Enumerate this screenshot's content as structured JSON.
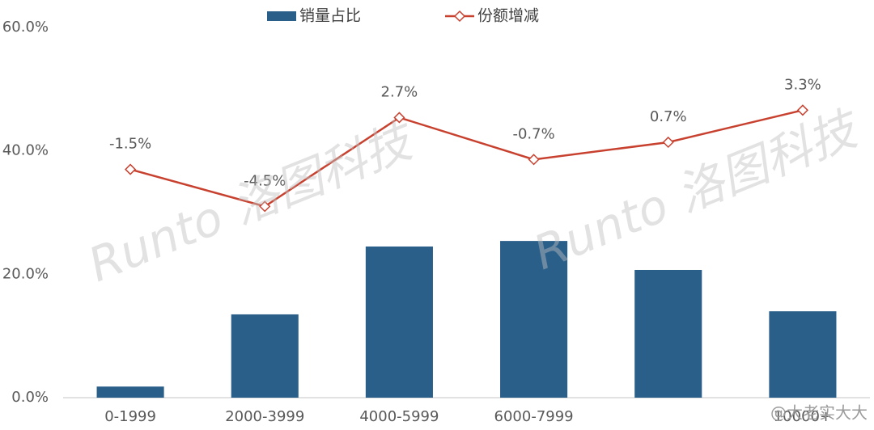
{
  "chart_data": {
    "type": "bar_line",
    "categories": [
      "0-1999",
      "2000-3999",
      "4000-5999",
      "6000-7999",
      null,
      "10000+"
    ],
    "series": [
      {
        "name": "销量占比",
        "type": "bar",
        "color": "#2a5f8a",
        "values": [
          1.8,
          13.5,
          24.5,
          25.4,
          20.7,
          14.0
        ]
      },
      {
        "name": "份额增减",
        "type": "line",
        "axis": "y2",
        "color": "#c8412f",
        "values": [
          -1.5,
          -4.5,
          2.7,
          -0.7,
          0.7,
          3.3
        ],
        "value_labels": [
          "-1.5%",
          "-4.5%",
          "2.7%",
          "-0.7%",
          "0.7%",
          "3.3%"
        ]
      }
    ],
    "ylim": [
      0,
      60
    ],
    "yticks": [
      {
        "value": 0,
        "label": "0.0%"
      },
      {
        "value": 20,
        "label": "20.0%"
      },
      {
        "value": 40,
        "label": "40.0%"
      },
      {
        "value": 60,
        "label": "60.0%"
      }
    ],
    "y2lim": [
      -20,
      10
    ],
    "legend": "top",
    "watermarks": [
      "Runto 洛图科技",
      "@大老实大大"
    ]
  }
}
